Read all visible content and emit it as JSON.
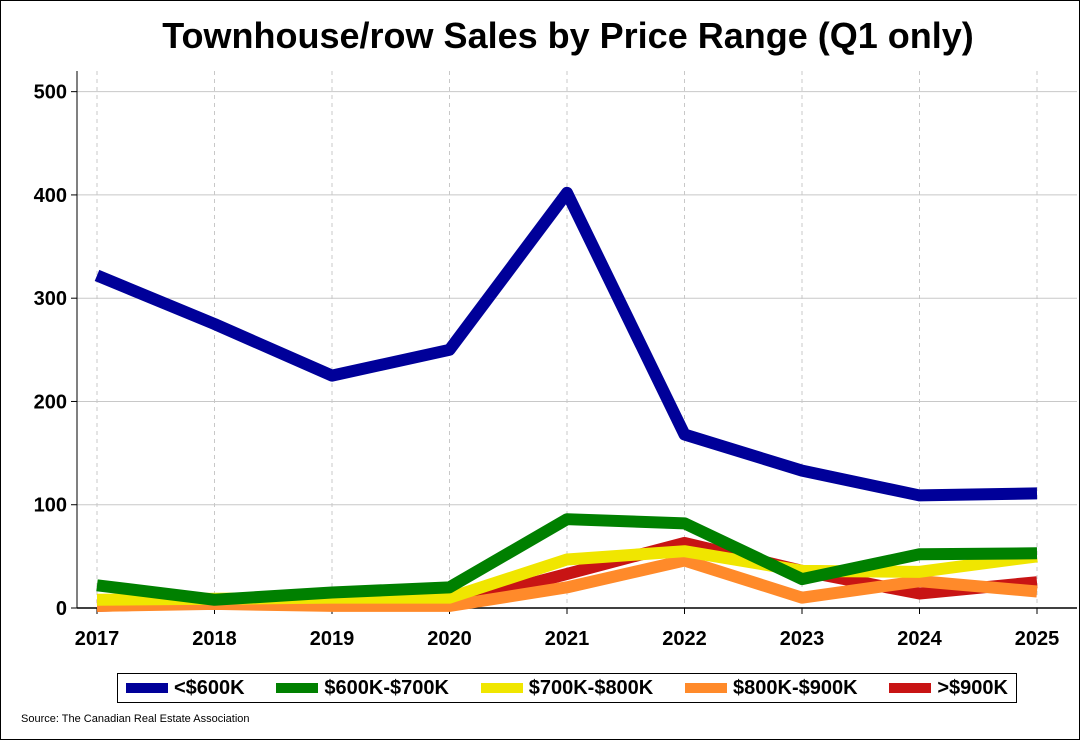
{
  "chart_data": {
    "type": "line",
    "title": "Townhouse/row Sales by Price Range (Q1 only)",
    "source": "Source: The Canadian Real Estate Association",
    "x": [
      "2017",
      "2018",
      "2019",
      "2020",
      "2021",
      "2022",
      "2023",
      "2024",
      "2025"
    ],
    "ylim": [
      0,
      520
    ],
    "yticks": [
      0,
      100,
      200,
      300,
      400,
      500
    ],
    "grid": true,
    "legend_position": "bottom",
    "series": [
      {
        "name": "<$600K",
        "color": "#000099",
        "values": [
          322,
          275,
          225,
          250,
          402,
          168,
          133,
          109,
          111
        ]
      },
      {
        "name": "$600K-$700K",
        "color": "#008000",
        "values": [
          22,
          8,
          15,
          20,
          86,
          82,
          28,
          52,
          53
        ]
      },
      {
        "name": "$700K-$800K",
        "color": "#f0e600",
        "values": [
          8,
          9,
          10,
          10,
          47,
          55,
          36,
          35,
          50
        ]
      },
      {
        "name": "$800K-$900K",
        "color": "#ff8a2a",
        "values": [
          2,
          4,
          2,
          2,
          20,
          46,
          10,
          26,
          16
        ]
      },
      {
        "name": ">$900K",
        "color": "#c81414",
        "values": [
          2,
          5,
          4,
          3,
          33,
          63,
          36,
          14,
          25
        ]
      }
    ]
  }
}
